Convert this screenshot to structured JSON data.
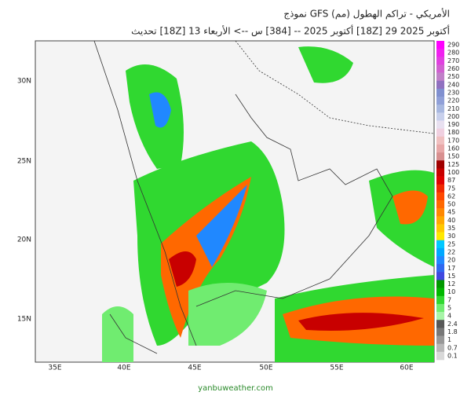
{
  "title": "نموذج GFS الأمريكي  - تراكم الهطول (مم)",
  "subtitle": "تحديث [18Z] 13 أكتوبر 2025 -- [384] س --> الأربعاء [18Z] 29 أكتوبر 2025",
  "map": {
    "lat_labels": [
      "30N",
      "25N",
      "20N",
      "15N"
    ],
    "lon_labels": [
      "35E",
      "40E",
      "45E",
      "50E",
      "55E",
      "60E"
    ]
  },
  "colorbar": {
    "levels": [
      {
        "label": "290",
        "color": "#ff00ff"
      },
      {
        "label": "280",
        "color": "#f020f0"
      },
      {
        "label": "270",
        "color": "#e040e0"
      },
      {
        "label": "260",
        "color": "#d060d0"
      },
      {
        "label": "250",
        "color": "#c080c8"
      },
      {
        "label": "240",
        "color": "#9070c0"
      },
      {
        "label": "230",
        "color": "#8090d0"
      },
      {
        "label": "220",
        "color": "#90a0d8"
      },
      {
        "label": "210",
        "color": "#a8b8e0"
      },
      {
        "label": "200",
        "color": "#c8d0ec"
      },
      {
        "label": "190",
        "color": "#e8e0f0"
      },
      {
        "label": "180",
        "color": "#f0d0e0"
      },
      {
        "label": "170",
        "color": "#f0c0c0"
      },
      {
        "label": "160",
        "color": "#e8a8a8"
      },
      {
        "label": "150",
        "color": "#d89090"
      },
      {
        "label": "125",
        "color": "#a00000"
      },
      {
        "label": "100",
        "color": "#c80000"
      },
      {
        "label": "87",
        "color": "#e00000"
      },
      {
        "label": "75",
        "color": "#f02800"
      },
      {
        "label": "62",
        "color": "#ff4800"
      },
      {
        "label": "50",
        "color": "#ff6800"
      },
      {
        "label": "45",
        "color": "#ff8800"
      },
      {
        "label": "40",
        "color": "#ffa800"
      },
      {
        "label": "35",
        "color": "#ffc800"
      },
      {
        "label": "30",
        "color": "#ffe800"
      },
      {
        "label": "25",
        "color": "#00c8ff"
      },
      {
        "label": "22",
        "color": "#00a8ff"
      },
      {
        "label": "20",
        "color": "#2088ff"
      },
      {
        "label": "17",
        "color": "#3068f0"
      },
      {
        "label": "15",
        "color": "#4048e0"
      },
      {
        "label": "12",
        "color": "#009800"
      },
      {
        "label": "10",
        "color": "#00b800"
      },
      {
        "label": "7",
        "color": "#30d830"
      },
      {
        "label": "5",
        "color": "#70ec70"
      },
      {
        "label": "4",
        "color": "#a8f4a8"
      },
      {
        "label": "2.4",
        "color": "#585858"
      },
      {
        "label": "1.8",
        "color": "#787878"
      },
      {
        "label": "1",
        "color": "#989898"
      },
      {
        "label": "0.7",
        "color": "#b8b8b8"
      },
      {
        "label": "0.1",
        "color": "#d8d8d8"
      }
    ]
  },
  "footer": "yanbuweather.com"
}
